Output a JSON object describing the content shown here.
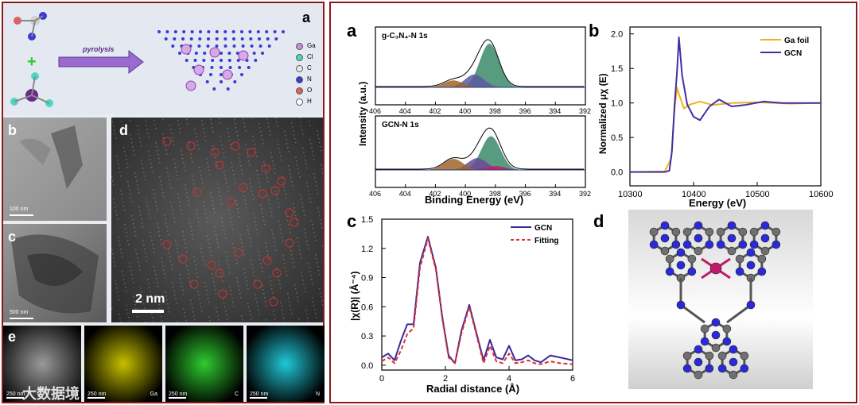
{
  "left_panel": {
    "label_a": "a",
    "label_b": "b",
    "label_c": "c",
    "label_d": "d",
    "label_e": "e",
    "arrow_text": "pyrolysis",
    "legend": [
      {
        "el": "Ga",
        "color": "#c48fd8"
      },
      {
        "el": "Cl",
        "color": "#4fd6c2"
      },
      {
        "el": "C",
        "color": "#e8e8e8"
      },
      {
        "el": "N",
        "color": "#3a3ad6"
      },
      {
        "el": "O",
        "color": "#e06060"
      },
      {
        "el": "H",
        "color": "#ffffff"
      }
    ],
    "scale_b": "100 nm",
    "scale_c": "500 nm",
    "scale_d": "2 nm",
    "eds": [
      {
        "scale": "250 nm",
        "el": "",
        "color": "#9a9a9a"
      },
      {
        "scale": "250 nm",
        "el": "Ga",
        "color": "#c8c000"
      },
      {
        "scale": "250 nm",
        "el": "C",
        "color": "#2ecc2e"
      },
      {
        "scale": "250 nm",
        "el": "N",
        "color": "#20c8d8"
      }
    ],
    "watermark": "大数据境"
  },
  "chart_data": [
    {
      "type": "line",
      "panel": "a-top",
      "title": "g-C3N4-N 1s",
      "xlabel": "",
      "ylabel": "Intensity (a.u.)",
      "xlim": [
        406,
        392
      ],
      "x_ticks": [
        "406",
        "404",
        "402",
        "400",
        "398",
        "396",
        "394",
        "392"
      ],
      "series": [
        {
          "name": "peak 398.4",
          "center": 398.4,
          "height": 0.95,
          "color": "#3a8a6a"
        },
        {
          "name": "peak 399.4",
          "center": 399.4,
          "height": 0.28,
          "color": "#5a5aa0"
        },
        {
          "name": "peak 400.8",
          "center": 400.8,
          "height": 0.15,
          "color": "#a0652a"
        }
      ]
    },
    {
      "type": "line",
      "panel": "a-bottom",
      "title": "GCN-N 1s",
      "xlabel": "Binding Energy (eV)",
      "ylabel": "Intensity (a.u.)",
      "xlim": [
        406,
        392
      ],
      "x_ticks": [
        "406",
        "404",
        "402",
        "400",
        "398",
        "396",
        "394",
        "392"
      ],
      "series": [
        {
          "name": "peak 398.3",
          "center": 398.3,
          "height": 0.85,
          "color": "#3a8a6a"
        },
        {
          "name": "peak 399.2",
          "center": 399.2,
          "height": 0.3,
          "color": "#6a4a9a"
        },
        {
          "name": "peak 400.8",
          "center": 400.8,
          "height": 0.28,
          "color": "#a0652a"
        },
        {
          "name": "peak 398.0 (Ga-N)",
          "center": 398.0,
          "height": 0.1,
          "color": "#c0206a"
        }
      ]
    },
    {
      "type": "line",
      "panel": "b",
      "xlabel": "Energy (eV)",
      "ylabel": "Normalized μχ (E)",
      "xlim": [
        10300,
        10600
      ],
      "ylim": [
        -0.2,
        2.1
      ],
      "x_ticks": [
        "10300",
        "10400",
        "10500",
        "10600"
      ],
      "y_ticks": [
        "0.0",
        "0.5",
        "1.0",
        "1.5",
        "2.0"
      ],
      "series": [
        {
          "name": "Ga foil",
          "color": "#f0b020",
          "x": [
            10300,
            10355,
            10365,
            10370,
            10374,
            10378,
            10385,
            10395,
            10410,
            10430,
            10460,
            10500,
            10550,
            10600
          ],
          "y": [
            0.0,
            0.01,
            0.2,
            0.9,
            1.22,
            1.1,
            0.92,
            0.98,
            1.02,
            0.97,
            1.0,
            1.01,
            0.99,
            1.0
          ]
        },
        {
          "name": "GCN",
          "color": "#4030a8",
          "x": [
            10300,
            10355,
            10362,
            10366,
            10370,
            10374,
            10377,
            10382,
            10390,
            10400,
            10410,
            10425,
            10440,
            10460,
            10480,
            10510,
            10540,
            10600
          ],
          "y": [
            0.0,
            0.0,
            0.02,
            0.3,
            0.95,
            1.45,
            1.95,
            1.4,
            0.98,
            0.8,
            0.75,
            0.95,
            1.05,
            0.95,
            0.97,
            1.02,
            1.0,
            1.0
          ]
        }
      ]
    },
    {
      "type": "line",
      "panel": "c",
      "xlabel": "Radial distance (Å)",
      "ylabel": "|χ(R)| (Å-4)",
      "xlim": [
        0,
        6
      ],
      "ylim": [
        -0.05,
        1.5
      ],
      "x_ticks": [
        "0",
        "2",
        "4",
        "6"
      ],
      "y_ticks": [
        "0.0",
        "0.3",
        "0.6",
        "0.9",
        "1.2",
        "1.5"
      ],
      "series": [
        {
          "name": "GCN",
          "color": "#3a2a9a",
          "x": [
            0,
            0.2,
            0.4,
            0.6,
            0.8,
            1.0,
            1.2,
            1.45,
            1.7,
            1.9,
            2.1,
            2.3,
            2.5,
            2.75,
            3.0,
            3.2,
            3.4,
            3.6,
            3.8,
            4.0,
            4.2,
            4.4,
            4.6,
            4.8,
            5.0,
            5.3,
            5.6,
            6.0
          ],
          "y": [
            0.08,
            0.12,
            0.05,
            0.25,
            0.42,
            0.42,
            1.05,
            1.32,
            1.0,
            0.5,
            0.1,
            0.02,
            0.35,
            0.62,
            0.3,
            0.05,
            0.26,
            0.08,
            0.06,
            0.2,
            0.05,
            0.06,
            0.1,
            0.05,
            0.03,
            0.1,
            0.08,
            0.05
          ]
        },
        {
          "name": "Fitting",
          "color": "#e03030",
          "dashed": true,
          "x": [
            0,
            0.2,
            0.4,
            0.6,
            0.8,
            1.0,
            1.2,
            1.45,
            1.7,
            1.9,
            2.1,
            2.3,
            2.5,
            2.75,
            3.0,
            3.2,
            3.4,
            3.6,
            3.8,
            4.0,
            4.2,
            4.4,
            4.6,
            4.8,
            5.0,
            5.3,
            5.6,
            6.0
          ],
          "y": [
            0.04,
            0.08,
            0.02,
            0.15,
            0.32,
            0.38,
            1.0,
            1.3,
            0.98,
            0.48,
            0.08,
            0.02,
            0.32,
            0.6,
            0.28,
            0.02,
            0.2,
            0.04,
            0.02,
            0.12,
            0.02,
            0.03,
            0.05,
            0.02,
            0.01,
            0.04,
            0.02,
            0.01
          ]
        }
      ]
    }
  ],
  "right_panel": {
    "label_a": "a",
    "label_b": "b",
    "label_c": "c",
    "label_d": "d",
    "a_top_title": "g-C₃N₄-N 1s",
    "a_bottom_title": "GCN-N 1s",
    "a_ylabel": "Intensity (a.u.)",
    "a_xlabel": "Binding Energy (eV)",
    "b_ylabel": "Normalized μχ (E)",
    "b_xlabel": "Energy (eV)",
    "b_legend": [
      "Ga foil",
      "GCN"
    ],
    "c_ylabel": "|χ(R)| (Å⁻⁴)",
    "c_xlabel": "Radial distance (Å)",
    "c_legend": [
      "GCN",
      "Fitting"
    ]
  }
}
